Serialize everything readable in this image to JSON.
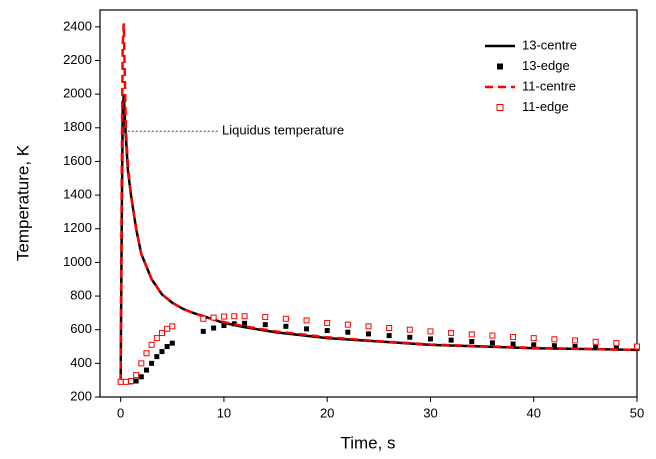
{
  "chart_data": {
    "type": "line",
    "xlabel": "Time, s",
    "ylabel": "Temperature, K",
    "xlim": [
      -2,
      50
    ],
    "xticks": [
      0,
      10,
      20,
      30,
      40,
      50
    ],
    "ylim": [
      200,
      2500
    ],
    "yticks": [
      200,
      400,
      600,
      800,
      1000,
      1200,
      1400,
      1600,
      1800,
      2000,
      2200,
      2400
    ],
    "legend": "upper right",
    "annotation": {
      "text": "Liquidus temperature",
      "value": 1780
    },
    "series": [
      {
        "name": "13-centre",
        "color": "#000000",
        "style": "solid",
        "x": [
          0,
          0.1,
          0.2,
          0.3,
          0.5,
          0.7,
          1,
          1.5,
          2,
          3,
          4,
          5,
          6,
          7,
          8,
          10,
          12,
          15,
          20,
          25,
          30,
          35,
          40,
          45,
          50
        ],
        "values": [
          290,
          1200,
          1900,
          2000,
          1750,
          1550,
          1400,
          1200,
          1050,
          900,
          810,
          760,
          725,
          700,
          680,
          640,
          615,
          585,
          550,
          530,
          510,
          500,
          490,
          485,
          480
        ]
      },
      {
        "name": "13-edge",
        "color": "#000000",
        "style": "filled-square",
        "x": [
          0,
          0.5,
          1,
          1.5,
          2,
          2.5,
          3,
          3.5,
          4,
          4.5,
          5,
          8,
          9,
          10,
          11,
          12,
          14,
          16,
          18,
          20,
          22,
          24,
          26,
          28,
          30,
          32,
          34,
          36,
          38,
          40,
          42,
          44,
          46,
          48,
          50
        ],
        "values": [
          290,
          290,
          290,
          295,
          320,
          360,
          400,
          440,
          470,
          500,
          520,
          590,
          610,
          625,
          635,
          638,
          630,
          620,
          605,
          595,
          585,
          575,
          565,
          555,
          545,
          538,
          530,
          522,
          515,
          510,
          505,
          500,
          495,
          492,
          488
        ]
      },
      {
        "name": "11-centre",
        "color": "#ff0000",
        "style": "dashed",
        "x": [
          0,
          0.1,
          0.2,
          0.3,
          0.5,
          0.7,
          1,
          1.5,
          2,
          3,
          4,
          5,
          6,
          7,
          8,
          10,
          12,
          15,
          20,
          25,
          30,
          35,
          40,
          45,
          50
        ],
        "values": [
          290,
          1500,
          2300,
          2420,
          1800,
          1580,
          1400,
          1200,
          1050,
          900,
          810,
          760,
          725,
          700,
          680,
          645,
          620,
          590,
          555,
          532,
          512,
          502,
          492,
          486,
          480
        ]
      },
      {
        "name": "11-edge",
        "color": "#ff0000",
        "style": "open-square",
        "x": [
          0,
          0.5,
          1,
          1.5,
          2,
          2.5,
          3,
          3.5,
          4,
          4.5,
          5,
          8,
          9,
          10,
          11,
          12,
          14,
          16,
          18,
          20,
          22,
          24,
          26,
          28,
          30,
          32,
          34,
          36,
          38,
          40,
          42,
          44,
          46,
          48,
          50
        ],
        "values": [
          290,
          290,
          295,
          330,
          400,
          460,
          510,
          550,
          580,
          605,
          620,
          665,
          672,
          678,
          680,
          680,
          675,
          665,
          655,
          640,
          630,
          620,
          610,
          600,
          590,
          580,
          572,
          565,
          557,
          550,
          543,
          536,
          528,
          520,
          500
        ]
      }
    ]
  }
}
